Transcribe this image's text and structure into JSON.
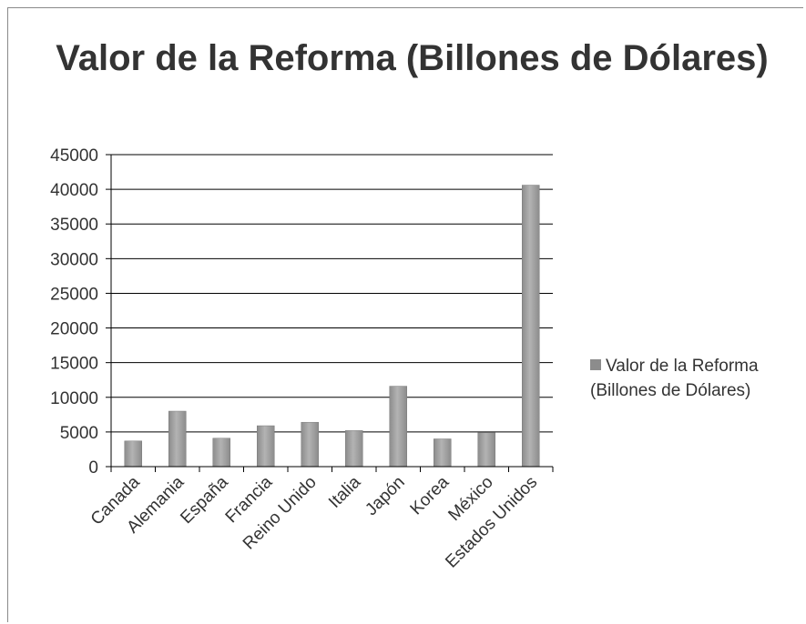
{
  "colors": {
    "bar": "#8c8c8c",
    "bar_highlight": "#b3b3b3",
    "grid": "#000000",
    "text": "#333333"
  },
  "chart_data": {
    "type": "bar",
    "title": "Valor de la Reforma (Billones de Dólares)",
    "categories": [
      "Canada",
      "Alemania",
      "España",
      "Francia",
      "Reino Unido",
      "Italia",
      "Japón",
      "Korea",
      "México",
      "Estados Unidos"
    ],
    "series": [
      {
        "name": "Valor de la Reforma (Billones de Dólares)",
        "values": [
          3700,
          8000,
          4100,
          5900,
          6400,
          5200,
          11600,
          4000,
          4900,
          40600
        ]
      }
    ],
    "ylim": [
      0,
      45000
    ],
    "yticks": [
      0,
      5000,
      10000,
      15000,
      20000,
      25000,
      30000,
      35000,
      40000,
      45000
    ],
    "grid": true,
    "legend_position": "right"
  }
}
